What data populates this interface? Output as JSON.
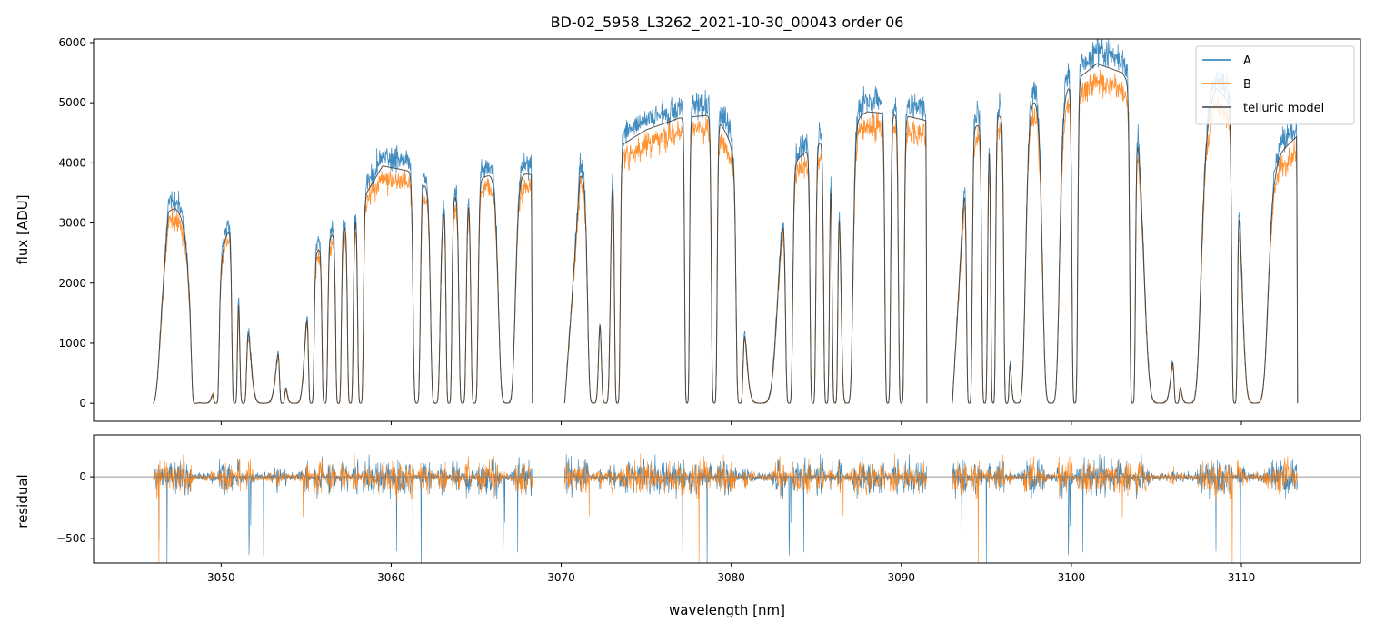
{
  "chart_data": [
    {
      "type": "line",
      "panel": "spectrum",
      "title": "BD-02_5958_L3262_2021-10-30_00043  order 06",
      "xlabel": "",
      "ylabel": "flux [ADU]",
      "xlim": [
        3042.5,
        3117
      ],
      "ylim": [
        -300,
        6060
      ],
      "yticks": [
        0,
        1000,
        2000,
        3000,
        4000,
        5000,
        6000
      ],
      "ytick_labels": [
        "0",
        "1000",
        "2000",
        "3000",
        "4000",
        "5000",
        "6000"
      ],
      "segments": [
        [
          3046.0,
          3068.3
        ],
        [
          3070.2,
          3091.5
        ],
        [
          3093.0,
          3113.3
        ]
      ],
      "envelope": {
        "x": [
          3046.0,
          3047.3,
          3048.5,
          3050.5,
          3052.5,
          3054.5,
          3056.5,
          3057.5,
          3059.5,
          3061.3,
          3063.0,
          3065.0,
          3066.5,
          3068.3,
          3070.2,
          3071.5,
          3073.0,
          3075.0,
          3077.0,
          3079.0,
          3081.0,
          3082.5,
          3084.0,
          3086.0,
          3088.0,
          3090.0,
          3091.5,
          3093.0,
          3095.0,
          3097.5,
          3099.5,
          3101.5,
          3103.0,
          3105.0,
          3107.0,
          3108.5,
          3110.5,
          3112.0,
          3113.3
        ],
        "values": [
          3100,
          3250,
          3000,
          2900,
          2400,
          2200,
          2800,
          3000,
          3950,
          3850,
          3300,
          3700,
          3900,
          3800,
          3500,
          3900,
          4200,
          4550,
          4750,
          4800,
          4000,
          3500,
          4100,
          4500,
          4850,
          4800,
          4700,
          4400,
          4700,
          5050,
          5200,
          5650,
          5500,
          4650,
          4150,
          5250,
          4650,
          4100,
          4450
        ]
      },
      "absorption_lines": [
        {
          "center": 3045.6,
          "width": 0.45
        },
        {
          "center": 3048.5,
          "width": 0.15
        },
        {
          "center": 3049.0,
          "width": 0.55
        },
        {
          "center": 3049.7,
          "width": 0.12
        },
        {
          "center": 3050.8,
          "width": 0.12
        },
        {
          "center": 3051.3,
          "width": 0.15
        },
        {
          "center": 3052.5,
          "width": 0.6
        },
        {
          "center": 3053.6,
          "width": 0.12
        },
        {
          "center": 3054.3,
          "width": 0.45
        },
        {
          "center": 3055.3,
          "width": 0.12
        },
        {
          "center": 3056.1,
          "width": 0.12
        },
        {
          "center": 3056.9,
          "width": 0.12
        },
        {
          "center": 3057.6,
          "width": 0.12
        },
        {
          "center": 3058.2,
          "width": 0.12
        },
        {
          "center": 3061.5,
          "width": 0.15
        },
        {
          "center": 3062.6,
          "width": 0.2
        },
        {
          "center": 3063.4,
          "width": 0.12
        },
        {
          "center": 3064.2,
          "width": 0.15
        },
        {
          "center": 3064.9,
          "width": 0.15
        },
        {
          "center": 3066.8,
          "width": 0.35
        },
        {
          "center": 3071.9,
          "width": 0.25
        },
        {
          "center": 3072.6,
          "width": 0.2
        },
        {
          "center": 3073.3,
          "width": 0.12
        },
        {
          "center": 3077.4,
          "width": 0.1
        },
        {
          "center": 3079.0,
          "width": 0.12
        },
        {
          "center": 3080.5,
          "width": 0.15
        },
        {
          "center": 3081.7,
          "width": 0.7
        },
        {
          "center": 3083.4,
          "width": 0.15
        },
        {
          "center": 3084.8,
          "width": 0.12
        },
        {
          "center": 3085.6,
          "width": 0.12
        },
        {
          "center": 3086.1,
          "width": 0.12
        },
        {
          "center": 3086.8,
          "width": 0.25
        },
        {
          "center": 3089.2,
          "width": 0.12
        },
        {
          "center": 3090.0,
          "width": 0.12
        },
        {
          "center": 3094.0,
          "width": 0.12
        },
        {
          "center": 3094.9,
          "width": 0.12
        },
        {
          "center": 3095.4,
          "width": 0.1
        },
        {
          "center": 3096.2,
          "width": 0.12
        },
        {
          "center": 3096.8,
          "width": 0.35
        },
        {
          "center": 3098.8,
          "width": 0.35
        },
        {
          "center": 3100.2,
          "width": 0.12
        },
        {
          "center": 3103.6,
          "width": 0.12
        },
        {
          "center": 3105.2,
          "width": 0.65
        },
        {
          "center": 3106.2,
          "width": 0.12
        },
        {
          "center": 3106.9,
          "width": 0.5
        },
        {
          "center": 3109.6,
          "width": 0.12
        },
        {
          "center": 3110.8,
          "width": 0.55
        }
      ],
      "series": [
        {
          "name": "A",
          "color": "#1f77b4",
          "relative_level": 1.04
        },
        {
          "name": "B",
          "color": "#ff7f0e",
          "relative_level": 0.95
        },
        {
          "name": "telluric model",
          "color": "#404040",
          "relative_level": 1.0
        }
      ],
      "legend": {
        "position": "top-right",
        "entries": [
          "A",
          "B",
          "telluric model"
        ]
      }
    },
    {
      "type": "line",
      "panel": "residual",
      "xlabel": "wavelength [nm]",
      "ylabel": "residual",
      "xlim": [
        3042.5,
        3117
      ],
      "ylim": [
        -700,
        340
      ],
      "xticks": [
        3050,
        3060,
        3070,
        3080,
        3090,
        3100,
        3110
      ],
      "xtick_labels": [
        "3050",
        "3060",
        "3070",
        "3080",
        "3090",
        "3100",
        "3110"
      ],
      "yticks": [
        -500,
        0
      ],
      "ytick_labels": [
        "−500",
        "0"
      ],
      "zero_line": 0,
      "series": [
        {
          "name": "A",
          "color": "#1f77b4",
          "typical_amplitude": 180
        },
        {
          "name": "B",
          "color": "#ff7f0e",
          "typical_amplitude": 170
        }
      ]
    }
  ]
}
